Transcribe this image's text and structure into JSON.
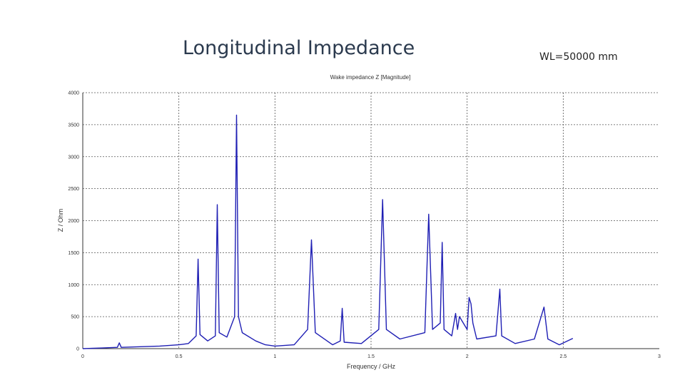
{
  "slide": {
    "title": "Longitudinal Impedance",
    "note": "WL=50000 mm"
  },
  "chart_data": {
    "type": "line",
    "title": "Wake impedance Z [Magnitude]",
    "xlabel": "Frequency / GHz",
    "ylabel": "Z / Ohm",
    "xlim": [
      0,
      3
    ],
    "ylim": [
      0,
      4000
    ],
    "x_ticks": [
      "0",
      "0.5",
      "1",
      "1.5",
      "2",
      "2.5",
      "3"
    ],
    "y_ticks": [
      "0",
      "500",
      "1000",
      "1500",
      "2000",
      "2500",
      "3000",
      "3500",
      "4000"
    ],
    "grid": "dotted",
    "line_color": "#1f1fb4",
    "series": [
      {
        "values_note": "peaks",
        "x": [
          0.0,
          0.1,
          0.18,
          0.19,
          0.2,
          0.3,
          0.4,
          0.5,
          0.55,
          0.59,
          0.6,
          0.61,
          0.65,
          0.69,
          0.7,
          0.71,
          0.75,
          0.79,
          0.8,
          0.81,
          0.83,
          0.9,
          0.95,
          1.0,
          1.1,
          1.17,
          1.19,
          1.21,
          1.3,
          1.34,
          1.35,
          1.36,
          1.45,
          1.54,
          1.56,
          1.58,
          1.65,
          1.78,
          1.8,
          1.82,
          1.86,
          1.87,
          1.88,
          1.92,
          1.94,
          1.95,
          1.96,
          2.0,
          2.01,
          2.02,
          2.03,
          2.05,
          2.15,
          2.17,
          2.18,
          2.25,
          2.35,
          2.4,
          2.42,
          2.48,
          2.55
        ],
        "y": [
          0,
          10,
          20,
          90,
          20,
          30,
          40,
          60,
          80,
          200,
          1400,
          220,
          120,
          200,
          2250,
          250,
          180,
          500,
          3650,
          500,
          250,
          120,
          60,
          40,
          60,
          300,
          1700,
          250,
          60,
          120,
          630,
          100,
          80,
          300,
          2330,
          300,
          150,
          250,
          2100,
          300,
          400,
          1660,
          300,
          200,
          550,
          300,
          500,
          300,
          800,
          700,
          400,
          150,
          200,
          930,
          200,
          80,
          150,
          650,
          150,
          60,
          160
        ]
      }
    ]
  }
}
